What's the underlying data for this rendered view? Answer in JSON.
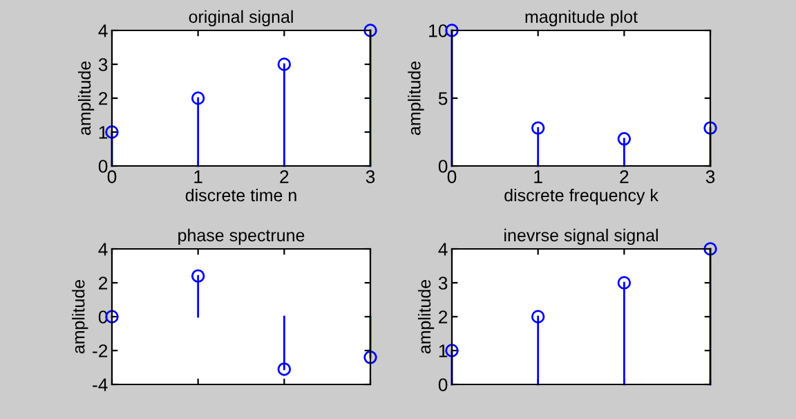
{
  "chart_data": [
    {
      "type": "lollipop",
      "title": "original signal",
      "xlabel": "discrete time n",
      "ylabel": "amplitude",
      "x": [
        0,
        1,
        2,
        3
      ],
      "values": [
        1,
        2,
        3,
        4
      ],
      "color": "#0000ff",
      "marker": "circle",
      "xlim": [
        0,
        3
      ],
      "xticks": [
        0,
        1,
        2,
        3
      ],
      "ylim": [
        0,
        4
      ],
      "yticks": [
        0,
        1,
        2,
        3,
        4
      ],
      "grid": false
    },
    {
      "type": "lollipop",
      "title": "magnitude plot",
      "xlabel": "discrete frequency k",
      "ylabel": "amplitude",
      "x": [
        0,
        1,
        2,
        3
      ],
      "values": [
        10,
        2.8,
        2,
        2.8
      ],
      "color": "#0000ff",
      "marker": "circle",
      "xlim": [
        0,
        3
      ],
      "xticks": [
        0,
        1,
        2,
        3
      ],
      "ylim": [
        0,
        10
      ],
      "yticks": [
        0,
        5,
        10
      ],
      "grid": false
    },
    {
      "type": "lollipop",
      "title": "phase spectrune",
      "ylabel": "amplitude",
      "x": [
        0,
        1,
        2,
        3
      ],
      "values": [
        0,
        2.4,
        -3.1,
        -2.4
      ],
      "color": "#0000ff",
      "marker": "circle",
      "xlim": [
        0,
        3
      ],
      "xticks": [
        0,
        1,
        2,
        3
      ],
      "ylim": [
        -4,
        4
      ],
      "yticks": [
        -4,
        -2,
        0,
        2,
        4
      ],
      "tick_labels": "y",
      "grid": false
    },
    {
      "type": "lollipop",
      "title": "inevrse signal signal",
      "ylabel": "amplitude",
      "x": [
        0,
        1,
        2,
        3
      ],
      "values": [
        1,
        2,
        3,
        4
      ],
      "color": "#0000ff",
      "marker": "circle",
      "xlim": [
        0,
        3
      ],
      "xticks": [
        0,
        1,
        2,
        3
      ],
      "ylim": [
        0,
        4
      ],
      "yticks": [
        0,
        1,
        2,
        3,
        4
      ],
      "tick_labels": "y",
      "grid": false
    }
  ]
}
